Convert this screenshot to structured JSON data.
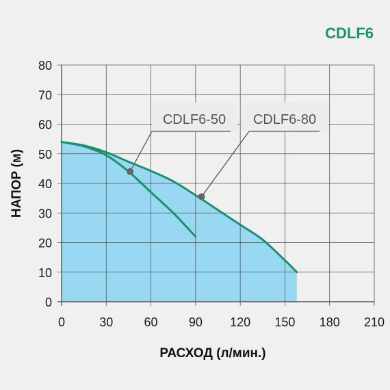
{
  "chart_data": {
    "type": "line",
    "title": "CDLF6",
    "xlabel": "РАСХОД (л/мин.)",
    "ylabel": "НАПОР (м)",
    "xlim": [
      0,
      210
    ],
    "ylim": [
      0,
      80
    ],
    "xticks": [
      0,
      30,
      60,
      90,
      120,
      150,
      180,
      210
    ],
    "yticks": [
      0,
      10,
      20,
      30,
      40,
      50,
      60,
      70,
      80
    ],
    "grid": true,
    "series": [
      {
        "name": "CDLF6-50",
        "x": [
          0,
          15,
          30,
          45,
          60,
          75,
          90
        ],
        "y": [
          54,
          52.5,
          49.5,
          44,
          37,
          30,
          22
        ]
      },
      {
        "name": "CDLF6-80",
        "x": [
          0,
          15,
          30,
          45,
          60,
          75,
          90,
          105,
          120,
          135,
          150,
          158
        ],
        "y": [
          54,
          52.8,
          50.5,
          47.3,
          44.2,
          40.7,
          36,
          31,
          26,
          21,
          14,
          10
        ]
      }
    ],
    "annotations": [
      {
        "label": "CDLF6-50",
        "series": "CDLF6-50",
        "point": [
          46,
          44
        ]
      },
      {
        "label": "CDLF6-80",
        "series": "CDLF6-80",
        "point": [
          94,
          35.5
        ]
      }
    ],
    "colors": {
      "curve": "#1e9070",
      "fill": "#99d8f2",
      "title": "#1e9070",
      "grid": "#555555",
      "marker": "#666666",
      "callout_box": "#ececec",
      "callout_line": "#555555"
    }
  }
}
